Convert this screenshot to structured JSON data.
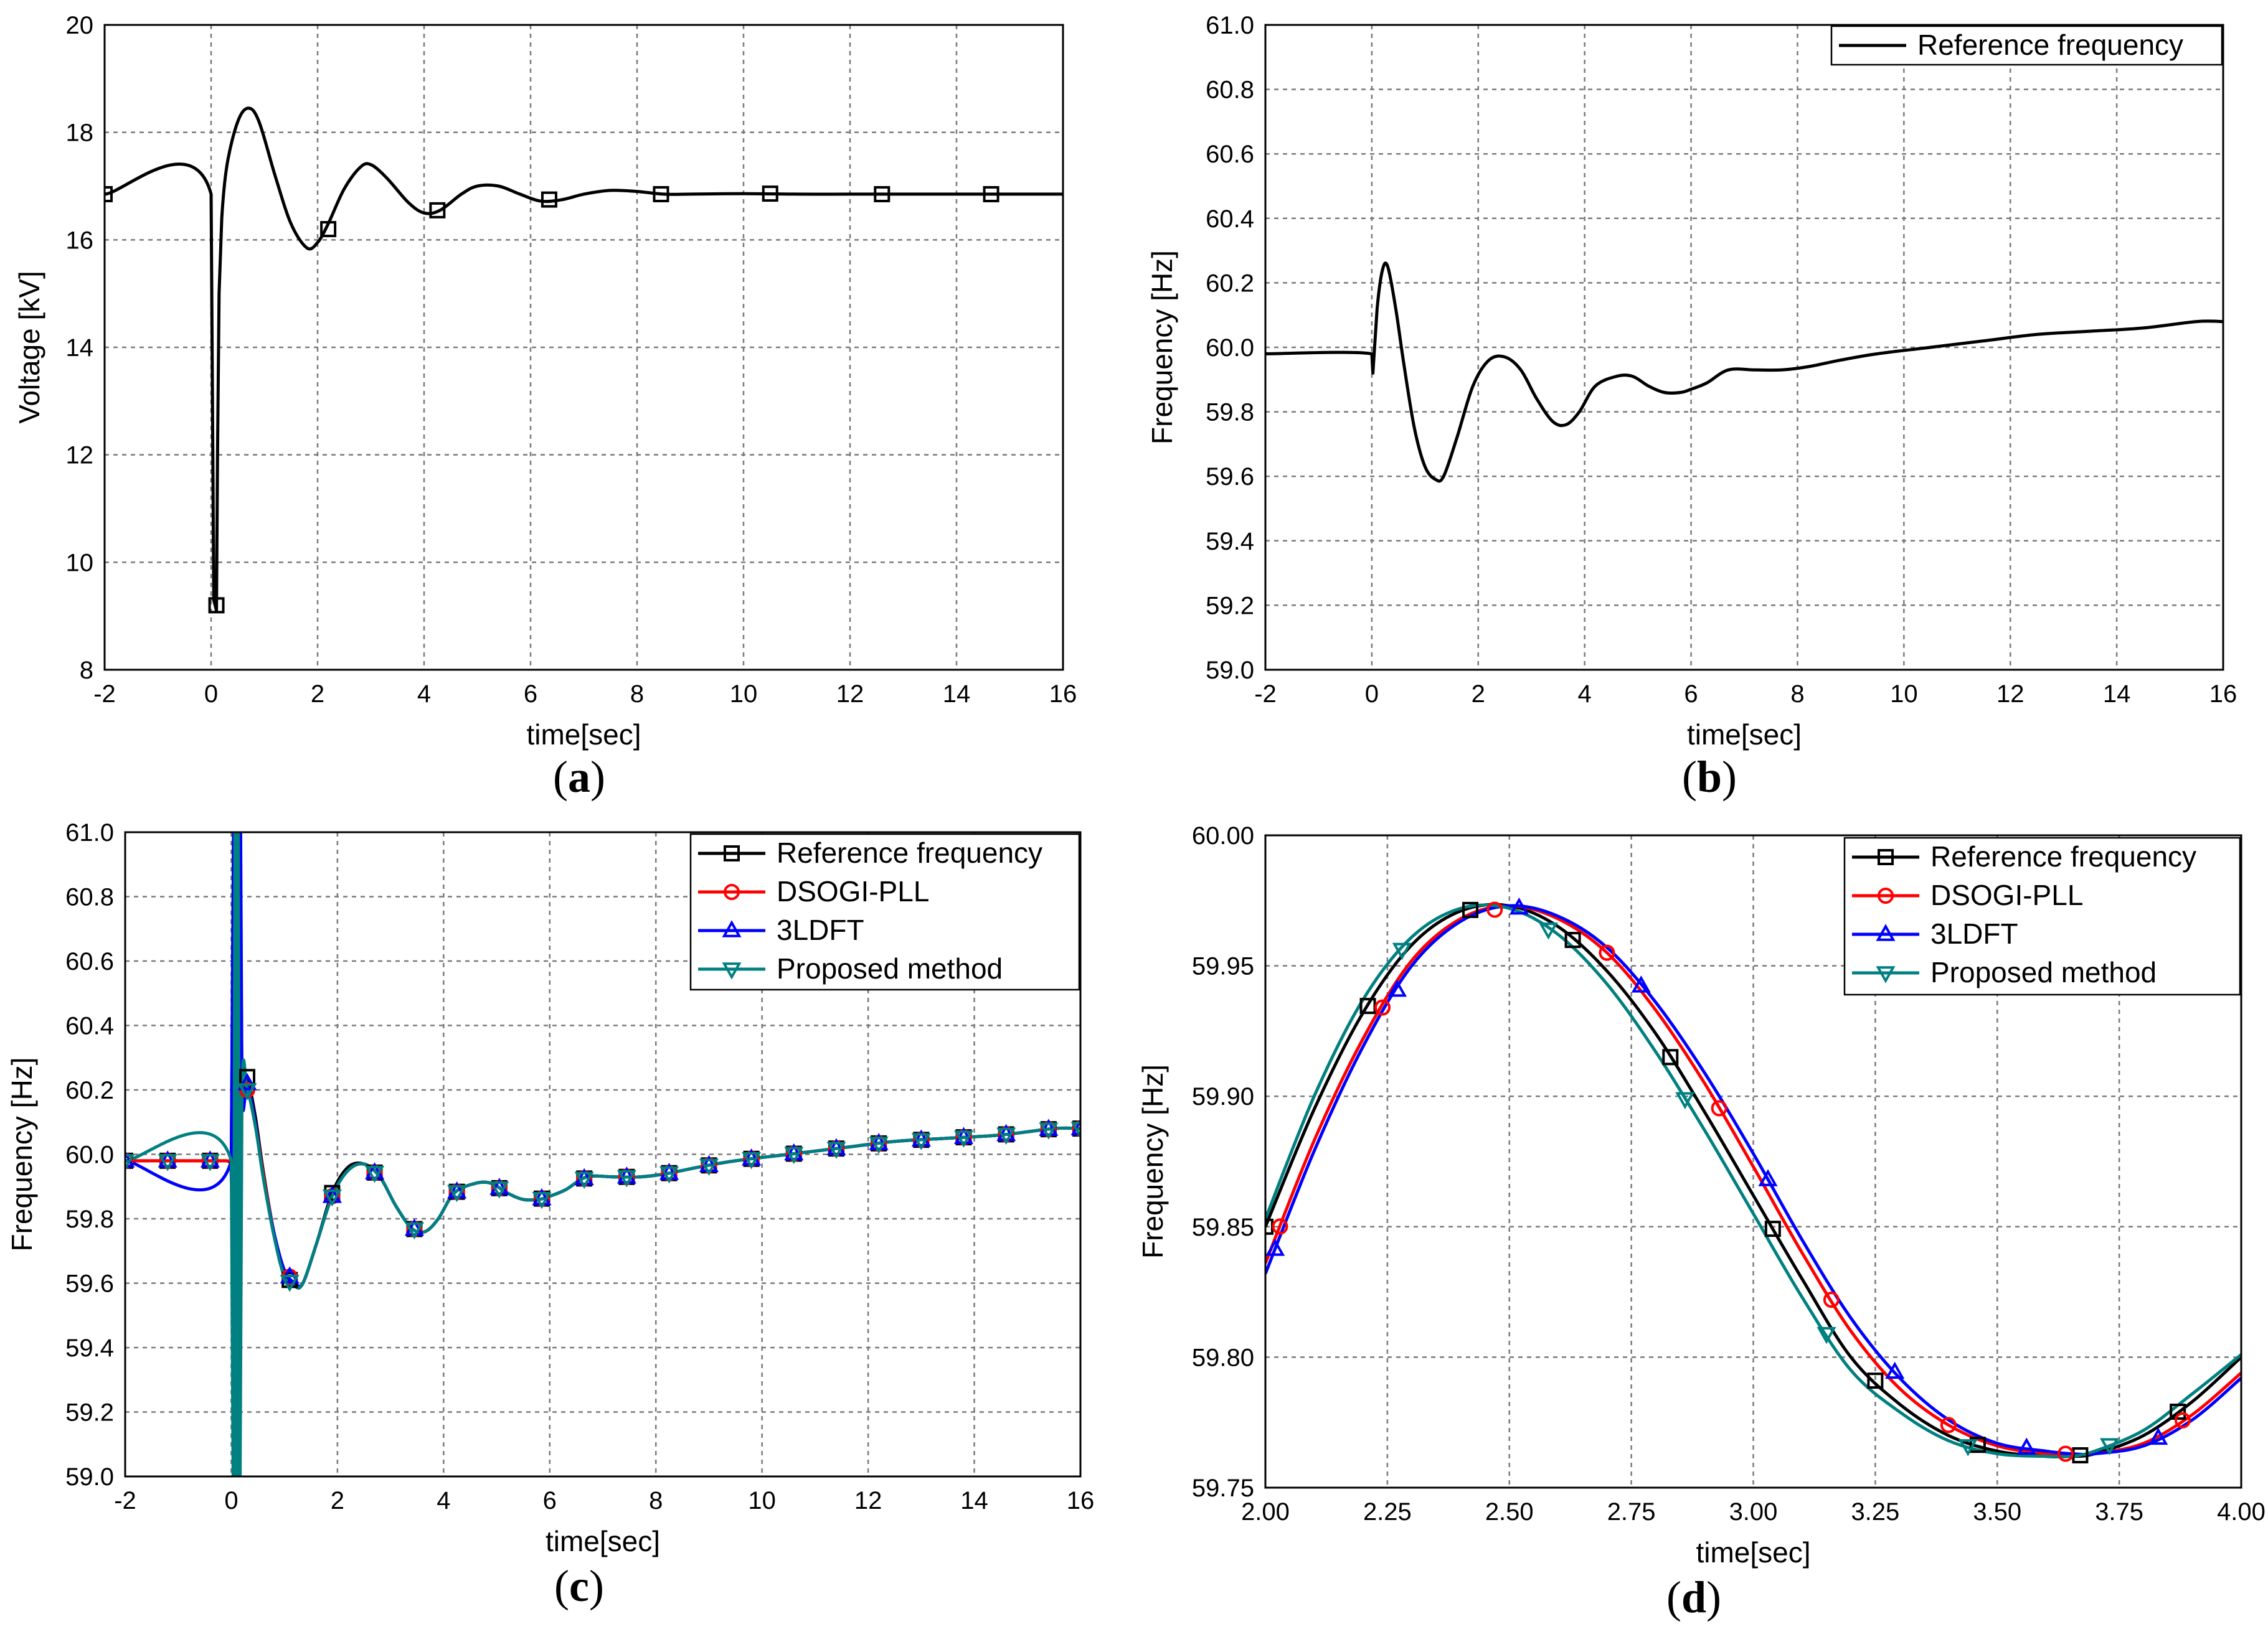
{
  "chart_data": [
    {
      "panel": "a",
      "caption": "(a)",
      "type": "line",
      "xlabel": "time[sec]",
      "ylabel": "Voltage [kV]",
      "xlim": [
        -2,
        16
      ],
      "ylim": [
        8,
        20
      ],
      "xticks": [
        -2,
        0,
        2,
        4,
        6,
        8,
        10,
        12,
        14,
        16
      ],
      "yticks": [
        8,
        10,
        12,
        14,
        16,
        18,
        20
      ],
      "xtick_labels": [
        "-2",
        "0",
        "2",
        "4",
        "6",
        "8",
        "10",
        "12",
        "14",
        "16"
      ],
      "ytick_labels": [
        "8",
        "10",
        "12",
        "14",
        "16",
        "18",
        "20"
      ],
      "grid": true,
      "legend": null,
      "series": [
        {
          "name": "Voltage",
          "color": "#000000",
          "marker": "square",
          "x": [
            -2,
            0.0,
            0.05,
            0.1,
            0.12,
            0.15,
            0.2,
            0.3,
            0.5,
            0.7,
            0.9,
            1.2,
            1.5,
            1.8,
            2.0,
            2.2,
            2.5,
            2.8,
            3.0,
            3.3,
            3.7,
            4.0,
            4.3,
            4.7,
            5.0,
            5.4,
            5.8,
            6.2,
            6.6,
            7.0,
            7.5,
            8.0,
            8.5,
            9.0,
            10.0,
            11.0,
            12.0,
            13.0,
            14.0,
            15.0,
            16.0
          ],
          "y": [
            16.85,
            16.85,
            9.3,
            9.1,
            12.0,
            15.0,
            16.4,
            17.4,
            18.2,
            18.45,
            18.2,
            17.2,
            16.3,
            15.85,
            15.95,
            16.3,
            16.95,
            17.35,
            17.4,
            17.15,
            16.7,
            16.5,
            16.55,
            16.85,
            17.0,
            17.0,
            16.85,
            16.72,
            16.75,
            16.85,
            16.92,
            16.9,
            16.85,
            16.85,
            16.86,
            16.85,
            16.85,
            16.85,
            16.85,
            16.85,
            16.85
          ],
          "markers_x": [
            -2.0,
            0.1,
            2.2,
            4.25,
            6.35,
            8.45,
            10.5,
            12.6,
            14.65
          ],
          "markers_y": [
            16.85,
            9.2,
            16.2,
            16.55,
            16.75,
            16.85,
            16.86,
            16.85,
            16.85
          ]
        }
      ]
    },
    {
      "panel": "b",
      "caption": "(b)",
      "type": "line",
      "xlabel": "time[sec]",
      "ylabel": "Frequency [Hz]",
      "xlim": [
        -2,
        16
      ],
      "ylim": [
        59.0,
        61.0
      ],
      "xticks": [
        -2,
        0,
        2,
        4,
        6,
        8,
        10,
        12,
        14,
        16
      ],
      "yticks": [
        59.0,
        59.2,
        59.4,
        59.6,
        59.8,
        60.0,
        60.2,
        60.4,
        60.6,
        60.8,
        61.0
      ],
      "xtick_labels": [
        "-2",
        "0",
        "2",
        "4",
        "6",
        "8",
        "10",
        "12",
        "14",
        "16"
      ],
      "ytick_labels": [
        "59.0",
        "59.2",
        "59.4",
        "59.6",
        "59.8",
        "60.0",
        "60.2",
        "60.4",
        "60.6",
        "60.8",
        "61.0"
      ],
      "grid": true,
      "legend": "top-right",
      "series": [
        {
          "name": "Reference frequency",
          "color": "#000000",
          "marker": "none",
          "x": [
            -2,
            0.0,
            0.02,
            0.1,
            0.2,
            0.3,
            0.45,
            0.6,
            0.8,
            1.0,
            1.2,
            1.35,
            1.6,
            1.9,
            2.2,
            2.5,
            2.8,
            3.1,
            3.4,
            3.65,
            3.9,
            4.2,
            4.6,
            4.9,
            5.2,
            5.5,
            5.8,
            6.0,
            6.3,
            6.7,
            7.2,
            7.7,
            8.2,
            8.8,
            9.5,
            10.5,
            11.5,
            12.5,
            13.5,
            14.5,
            15.5,
            16.0
          ],
          "y": [
            59.98,
            59.98,
            59.92,
            60.12,
            60.24,
            60.25,
            60.12,
            59.95,
            59.75,
            59.63,
            59.59,
            59.6,
            59.72,
            59.88,
            59.96,
            59.97,
            59.93,
            59.84,
            59.77,
            59.76,
            59.8,
            59.88,
            59.91,
            59.91,
            59.88,
            59.86,
            59.86,
            59.87,
            59.89,
            59.93,
            59.93,
            59.93,
            59.94,
            59.96,
            59.98,
            60.0,
            60.02,
            60.04,
            60.05,
            60.06,
            60.08,
            60.08
          ]
        }
      ]
    },
    {
      "panel": "c",
      "caption": "(c)",
      "type": "line",
      "xlabel": "time[sec]",
      "ylabel": "Frequency [Hz]",
      "xlim": [
        -2,
        16
      ],
      "ylim": [
        59.0,
        61.0
      ],
      "xticks": [
        -2,
        0,
        2,
        4,
        6,
        8,
        10,
        12,
        14,
        16
      ],
      "yticks": [
        59.0,
        59.2,
        59.4,
        59.6,
        59.8,
        60.0,
        60.2,
        60.4,
        60.6,
        60.8,
        61.0
      ],
      "xtick_labels": [
        "-2",
        "0",
        "2",
        "4",
        "6",
        "8",
        "10",
        "12",
        "14",
        "16"
      ],
      "ytick_labels": [
        "59.0",
        "59.2",
        "59.4",
        "59.6",
        "59.8",
        "60.0",
        "60.2",
        "60.4",
        "60.6",
        "60.8",
        "61.0"
      ],
      "grid": true,
      "legend": "top-right",
      "marker_times": [
        -2.0,
        -1.2,
        -0.4,
        0.3,
        1.1,
        1.9,
        2.7,
        3.45,
        4.25,
        5.05,
        5.85,
        6.65,
        7.45,
        8.25,
        9.0,
        9.8,
        10.6,
        11.4,
        12.2,
        13.0,
        13.8,
        14.6,
        15.4,
        16.0
      ],
      "series": [
        {
          "name": "Reference frequency",
          "color": "#000000",
          "marker": "square",
          "x": [
            -2,
            -0.1,
            0.0,
            0.05,
            0.1,
            0.15,
            0.2,
            0.3,
            0.45,
            0.6,
            0.8,
            1.0,
            1.2,
            1.35,
            1.6,
            1.9,
            2.2,
            2.5,
            2.8,
            3.1,
            3.4,
            3.65,
            3.9,
            4.2,
            4.6,
            4.9,
            5.2,
            5.5,
            5.8,
            6.0,
            6.3,
            6.7,
            7.2,
            7.7,
            8.2,
            8.8,
            9.5,
            10.5,
            11.5,
            12.5,
            13.5,
            14.5,
            15.5,
            16.0
          ],
          "y": [
            59.98,
            59.98,
            59.98,
            61.2,
            58.8,
            61.2,
            60.23,
            60.24,
            60.12,
            59.95,
            59.76,
            59.63,
            59.59,
            59.6,
            59.72,
            59.88,
            59.96,
            59.97,
            59.93,
            59.84,
            59.77,
            59.76,
            59.8,
            59.88,
            59.91,
            59.91,
            59.88,
            59.86,
            59.86,
            59.87,
            59.89,
            59.93,
            59.93,
            59.93,
            59.94,
            59.96,
            59.98,
            60.0,
            60.02,
            60.04,
            60.05,
            60.06,
            60.08,
            60.08
          ]
        },
        {
          "name": "DSOGI-PLL",
          "color": "#ff0000",
          "marker": "circle",
          "x": [
            -2,
            -0.1,
            0.0,
            0.02,
            0.1,
            0.2,
            0.3,
            0.45,
            0.6,
            0.8,
            1.0,
            1.2,
            1.35,
            1.6,
            1.9,
            2.2,
            2.5,
            2.8,
            3.1,
            3.4,
            3.65,
            3.9,
            4.2,
            4.6,
            4.9,
            5.2,
            5.5,
            5.8,
            6.0,
            6.3,
            6.7,
            7.2,
            7.7,
            8.2,
            8.8,
            9.5,
            10.5,
            11.5,
            12.5,
            13.5,
            14.5,
            15.5,
            16.0
          ],
          "y": [
            59.98,
            59.98,
            59.98,
            60.22,
            60.22,
            60.22,
            60.2,
            60.1,
            59.94,
            59.76,
            59.64,
            59.6,
            59.6,
            59.72,
            59.87,
            59.95,
            59.97,
            59.93,
            59.84,
            59.77,
            59.76,
            59.8,
            59.88,
            59.91,
            59.91,
            59.88,
            59.86,
            59.86,
            59.87,
            59.89,
            59.93,
            59.93,
            59.93,
            59.94,
            59.96,
            59.98,
            60.0,
            60.02,
            60.04,
            60.05,
            60.06,
            60.08,
            60.08
          ]
        },
        {
          "name": "3LDFT",
          "color": "#0000ff",
          "marker": "triangle-up",
          "x": [
            -2,
            0.0,
            0.05,
            0.08,
            0.11,
            0.14,
            0.17,
            0.2,
            0.3,
            0.45,
            0.6,
            0.8,
            1.0,
            1.2,
            1.35,
            1.6,
            1.9,
            2.2,
            2.5,
            2.8,
            3.1,
            3.4,
            3.65,
            3.9,
            4.2,
            4.6,
            4.9,
            5.2,
            5.5,
            5.8,
            6.0,
            6.3,
            6.7,
            7.2,
            7.7,
            8.2,
            8.8,
            9.5,
            10.5,
            11.5,
            12.5,
            13.5,
            14.5,
            15.5,
            16.0
          ],
          "y": [
            59.98,
            59.98,
            61.2,
            58.8,
            61.2,
            58.8,
            61.2,
            60.2,
            60.22,
            60.1,
            59.93,
            59.76,
            59.64,
            59.6,
            59.6,
            59.72,
            59.87,
            59.95,
            59.97,
            59.93,
            59.84,
            59.77,
            59.76,
            59.8,
            59.88,
            59.91,
            59.91,
            59.88,
            59.86,
            59.86,
            59.87,
            59.89,
            59.93,
            59.93,
            59.93,
            59.94,
            59.96,
            59.98,
            60.0,
            60.02,
            60.04,
            60.05,
            60.06,
            60.08,
            60.08
          ]
        },
        {
          "name": "Proposed method",
          "color": "#008080",
          "marker": "triangle-down",
          "x": [
            -2,
            0.0,
            0.04,
            0.07,
            0.1,
            0.13,
            0.16,
            0.2,
            0.3,
            0.45,
            0.6,
            0.8,
            1.0,
            1.2,
            1.35,
            1.6,
            1.9,
            2.2,
            2.5,
            2.8,
            3.1,
            3.4,
            3.65,
            3.9,
            4.2,
            4.6,
            4.9,
            5.2,
            5.5,
            5.8,
            6.0,
            6.3,
            6.7,
            7.2,
            7.7,
            8.2,
            8.8,
            9.5,
            10.5,
            11.5,
            12.5,
            13.5,
            14.5,
            15.5,
            16.0
          ],
          "y": [
            59.98,
            59.98,
            58.8,
            61.2,
            58.8,
            61.2,
            58.8,
            60.18,
            60.2,
            60.09,
            59.93,
            59.75,
            59.62,
            59.59,
            59.6,
            59.72,
            59.87,
            59.95,
            59.97,
            59.93,
            59.84,
            59.77,
            59.76,
            59.8,
            59.88,
            59.91,
            59.91,
            59.88,
            59.86,
            59.86,
            59.87,
            59.89,
            59.93,
            59.93,
            59.93,
            59.94,
            59.96,
            59.98,
            60.0,
            60.02,
            60.04,
            60.05,
            60.06,
            60.08,
            60.08
          ]
        }
      ]
    },
    {
      "panel": "d",
      "caption": "(d)",
      "type": "line",
      "xlabel": "time[sec]",
      "ylabel": "Frequency [Hz]",
      "xlim": [
        2.0,
        4.0
      ],
      "ylim": [
        59.75,
        60.0
      ],
      "xticks": [
        2.0,
        2.25,
        2.5,
        2.75,
        3.0,
        3.25,
        3.5,
        3.75,
        4.0
      ],
      "yticks": [
        59.75,
        59.8,
        59.85,
        59.9,
        59.95,
        60.0
      ],
      "xtick_labels": [
        "2.00",
        "2.25",
        "2.50",
        "2.75",
        "3.00",
        "3.25",
        "3.50",
        "3.75",
        "4.00"
      ],
      "ytick_labels": [
        "59.75",
        "59.80",
        "59.85",
        "59.90",
        "59.95",
        "60.00"
      ],
      "grid": true,
      "legend": "top-right",
      "series": [
        {
          "name": "Reference frequency",
          "color": "#000000",
          "marker": "square",
          "phase_shift": 0.0,
          "markers_x": [
            2.0,
            2.21,
            2.42,
            2.63,
            2.83,
            3.04,
            3.25,
            3.46,
            3.67,
            3.87
          ],
          "x": [
            2.0,
            2.1,
            2.2,
            2.3,
            2.4,
            2.5,
            2.6,
            2.7,
            2.8,
            2.9,
            3.0,
            3.1,
            3.2,
            3.3,
            3.4,
            3.5,
            3.6,
            3.65,
            3.7,
            3.8,
            3.9,
            4.0
          ],
          "y": [
            59.85,
            59.895,
            59.932,
            59.958,
            59.971,
            59.973,
            59.965,
            59.948,
            59.924,
            59.894,
            59.862,
            59.83,
            59.8,
            59.782,
            59.77,
            59.764,
            59.762,
            59.762,
            59.763,
            59.77,
            59.783,
            59.8
          ]
        },
        {
          "name": "DSOGI-PLL",
          "color": "#ff0000",
          "marker": "circle",
          "phase_shift": 0.03,
          "markers_x": [
            2.03,
            2.24,
            2.47,
            2.7,
            2.93,
            3.16,
            3.4,
            3.64,
            3.88
          ],
          "x": [
            2.0,
            2.1,
            2.2,
            2.3,
            2.4,
            2.5,
            2.6,
            2.7,
            2.8,
            2.9,
            3.0,
            3.1,
            3.2,
            3.3,
            3.4,
            3.5,
            3.6,
            3.65,
            3.7,
            3.8,
            3.9,
            4.0
          ],
          "y": [
            59.836,
            59.883,
            59.922,
            59.952,
            59.968,
            59.973,
            59.968,
            59.955,
            59.933,
            59.905,
            59.873,
            59.84,
            59.81,
            59.788,
            59.774,
            59.766,
            59.763,
            59.763,
            59.763,
            59.767,
            59.778,
            59.794
          ]
        },
        {
          "name": "3LDFT",
          "color": "#0000ff",
          "marker": "triangle-up",
          "phase_shift": 0.04,
          "markers_x": [
            2.02,
            2.27,
            2.52,
            2.77,
            3.03,
            3.29,
            3.56,
            3.83
          ],
          "x": [
            2.0,
            2.1,
            2.2,
            2.3,
            2.4,
            2.5,
            2.6,
            2.7,
            2.8,
            2.9,
            3.0,
            3.1,
            3.2,
            3.3,
            3.4,
            3.5,
            3.6,
            3.65,
            3.7,
            3.8,
            3.9,
            4.0
          ],
          "y": [
            59.832,
            59.879,
            59.919,
            59.95,
            59.967,
            59.973,
            59.969,
            59.957,
            59.936,
            59.909,
            59.878,
            59.845,
            59.815,
            59.792,
            59.776,
            59.767,
            59.764,
            59.763,
            59.763,
            59.766,
            59.776,
            59.792
          ]
        },
        {
          "name": "Proposed method",
          "color": "#008080",
          "marker": "triangle-down",
          "phase_shift": -0.02,
          "markers_x": [
            2.28,
            2.58,
            2.86,
            3.15,
            3.44,
            3.73
          ],
          "x": [
            2.0,
            2.1,
            2.2,
            2.3,
            2.4,
            2.5,
            2.6,
            2.7,
            2.8,
            2.9,
            3.0,
            3.1,
            3.2,
            3.3,
            3.4,
            3.5,
            3.6,
            3.65,
            3.7,
            3.8,
            3.9,
            4.0
          ],
          "y": [
            59.853,
            59.9,
            59.937,
            59.961,
            59.972,
            59.972,
            59.962,
            59.943,
            59.917,
            59.887,
            59.855,
            59.823,
            59.795,
            59.779,
            59.768,
            59.763,
            59.762,
            59.762,
            59.764,
            59.772,
            59.786,
            59.801
          ]
        }
      ]
    }
  ]
}
